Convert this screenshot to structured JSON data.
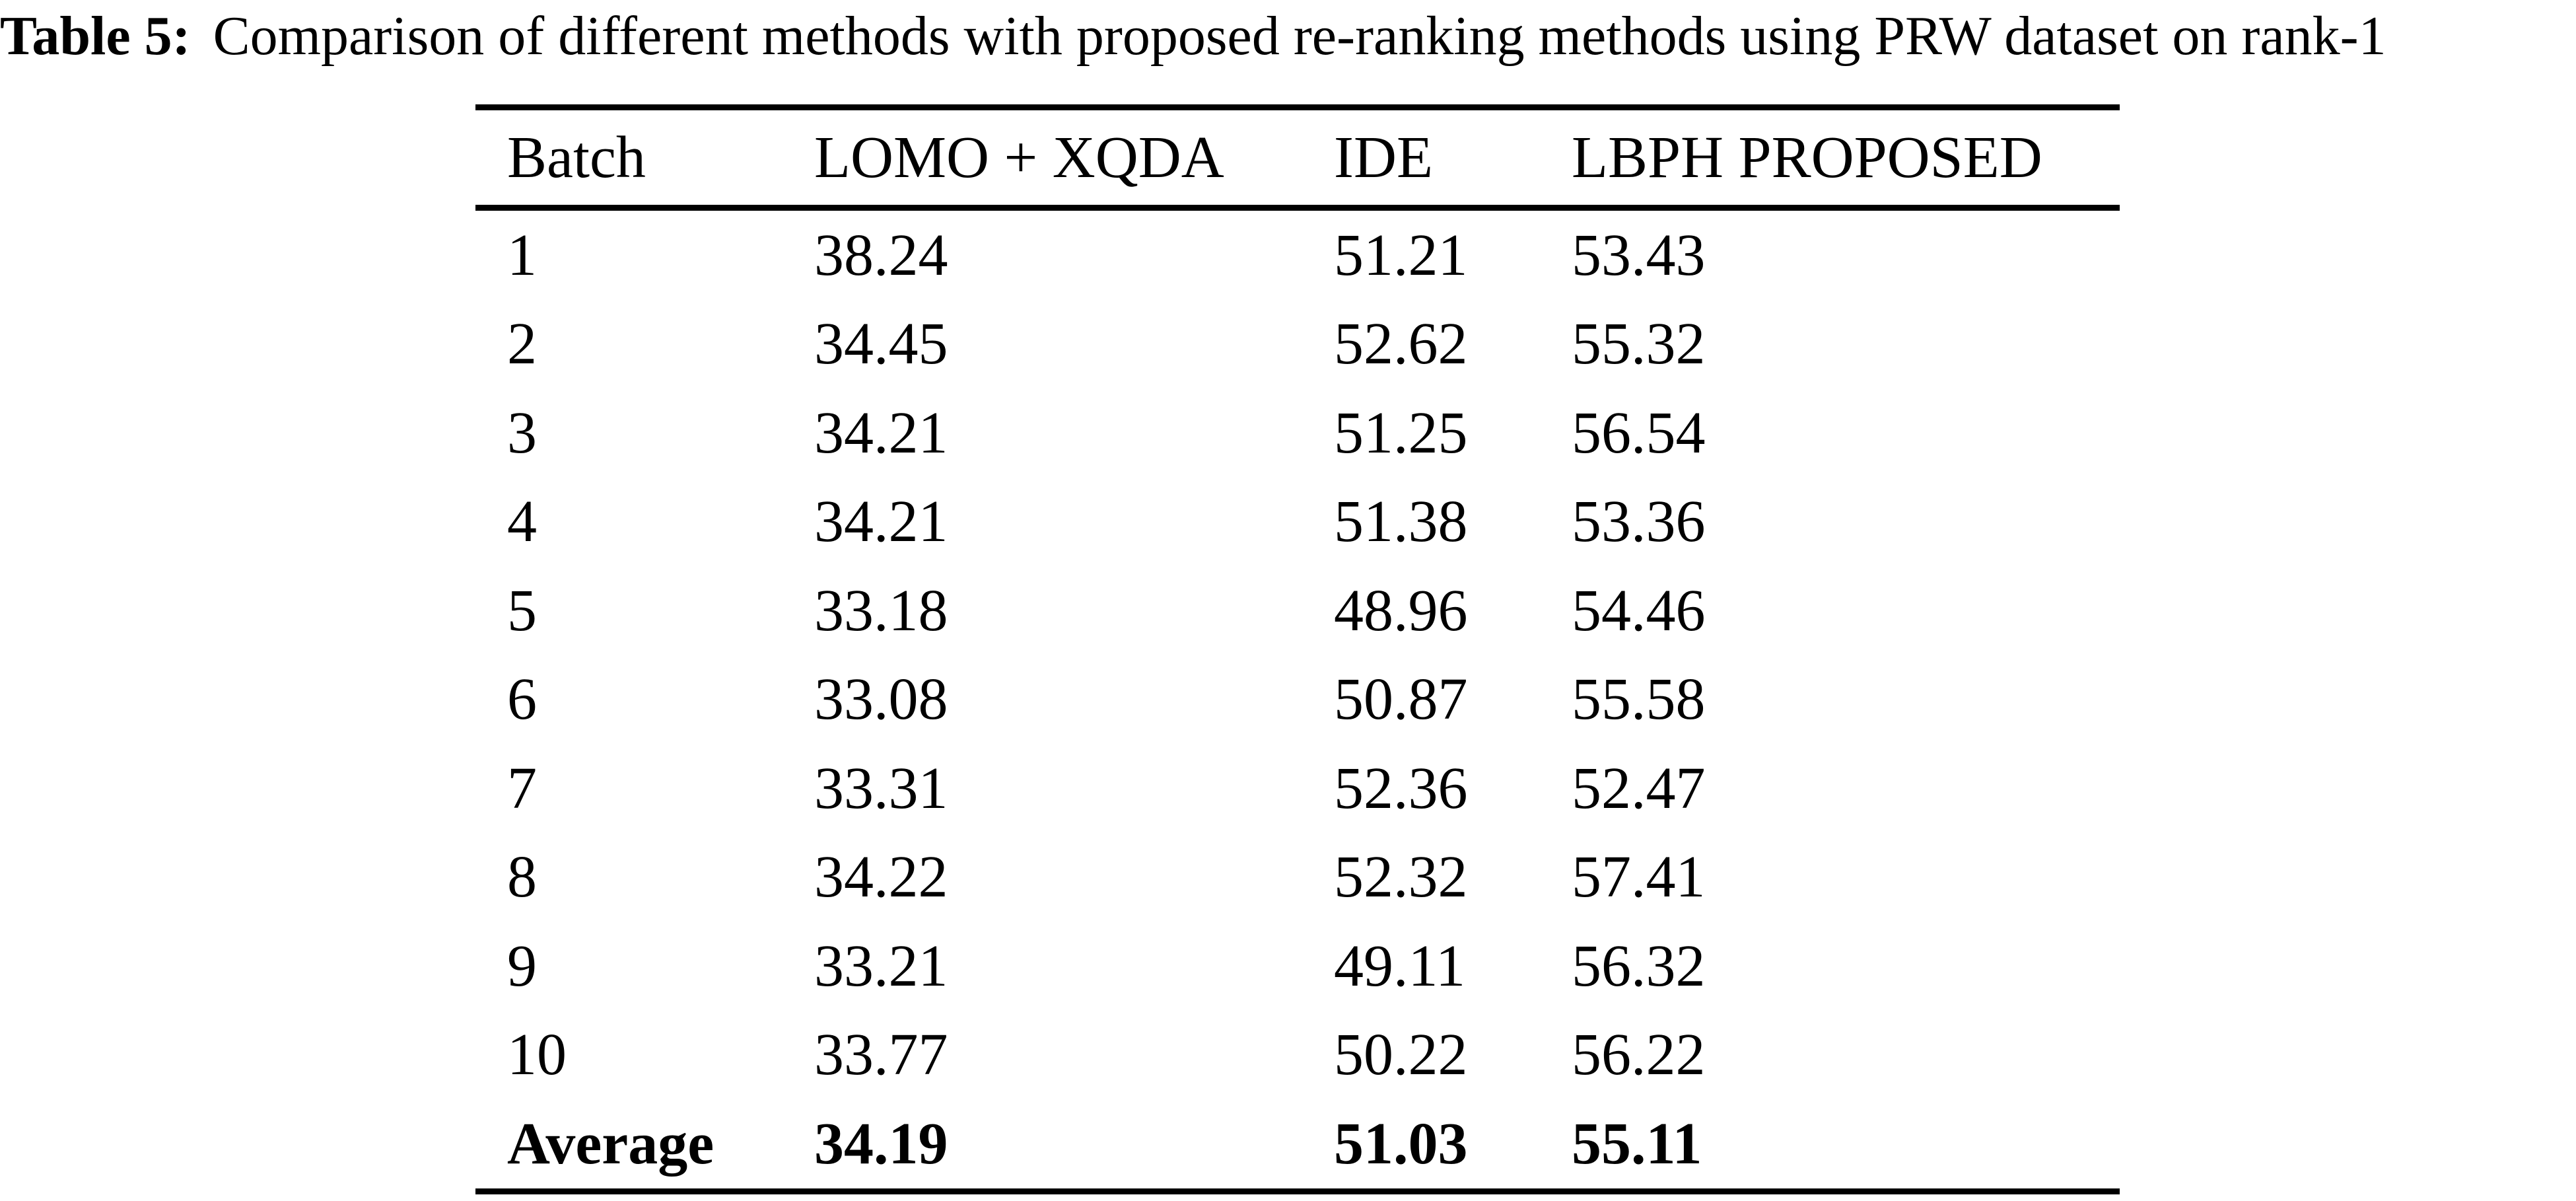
{
  "caption": {
    "label": "Table 5:",
    "text": "Comparison of different methods with proposed re-ranking methods using PRW dataset on rank-1"
  },
  "table": {
    "columns": [
      "Batch",
      "LOMO + XQDA",
      "IDE",
      "LBPH PROPOSED"
    ],
    "rows": [
      [
        "1",
        "38.24",
        "51.21",
        "53.43"
      ],
      [
        "2",
        "34.45",
        "52.62",
        "55.32"
      ],
      [
        "3",
        "34.21",
        "51.25",
        "56.54"
      ],
      [
        "4",
        "34.21",
        "51.38",
        "53.36"
      ],
      [
        "5",
        "33.18",
        "48.96",
        "54.46"
      ],
      [
        "6",
        "33.08",
        "50.87",
        "55.58"
      ],
      [
        "7",
        "33.31",
        "52.36",
        "52.47"
      ],
      [
        "8",
        "34.22",
        "52.32",
        "57.41"
      ],
      [
        "9",
        "33.21",
        "49.11",
        "56.32"
      ],
      [
        "10",
        "33.77",
        "50.22",
        "56.22"
      ]
    ],
    "average_row": [
      "Average",
      "34.19",
      "51.03",
      "55.11"
    ]
  }
}
